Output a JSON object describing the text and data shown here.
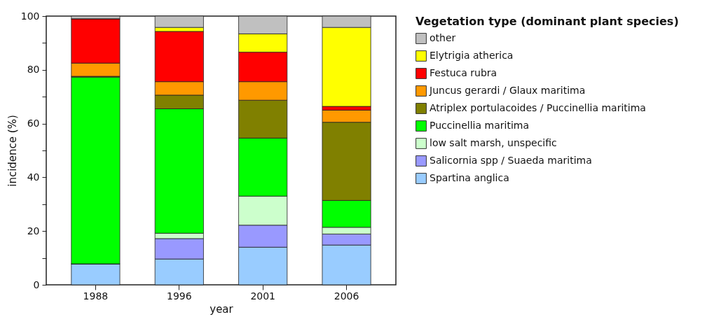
{
  "chart_data": {
    "type": "bar",
    "stacked": true,
    "xlabel": "year",
    "ylabel": "incidence (%)",
    "legend_title": "Vegetation type (dominant plant species)",
    "legend": "right",
    "grid": false,
    "categories": [
      "1988",
      "1996",
      "2001",
      "2006"
    ],
    "ylim": [
      0,
      100
    ],
    "yticks": [
      0,
      {
        "value": 10,
        "label": null
      },
      20,
      {
        "value": 30,
        "label": null
      },
      40,
      {
        "value": 50,
        "label": null
      },
      60,
      {
        "value": 70,
        "label": null
      },
      80,
      {
        "value": 90,
        "label": null
      },
      100
    ],
    "series": [
      {
        "name": "Spartina anglica",
        "color": "#99ccff",
        "values": [
          7.8,
          9.6,
          14.0,
          14.8
        ]
      },
      {
        "name": "Salicornia   spp / Suaeda maritima",
        "color": "#9999ff",
        "values": [
          0,
          7.6,
          8.2,
          4.1
        ]
      },
      {
        "name": "low salt marsh, unspecific",
        "color": "#ccffcc",
        "values": [
          0,
          2.0,
          10.8,
          2.5
        ]
      },
      {
        "name": "Puccinellia maritima",
        "color": "#00ff00",
        "values": [
          69.5,
          46.3,
          21.6,
          10.0
        ]
      },
      {
        "name": "Atriplex portulacoides / Puccinellia maritima",
        "color": "#808000",
        "values": [
          0.3,
          5.1,
          14.1,
          29.1
        ]
      },
      {
        "name": "Juncus gerardi / Glaux maritima",
        "color": "#ff9900",
        "values": [
          4.9,
          5.0,
          6.9,
          4.5
        ]
      },
      {
        "name": "Festuca rubra",
        "color": "#ff0000",
        "values": [
          16.5,
          18.7,
          11.0,
          1.4
        ]
      },
      {
        "name": "Elytrigia atherica",
        "color": "#ffff00",
        "values": [
          0,
          1.5,
          6.8,
          29.4
        ]
      },
      {
        "name": "other",
        "color": "#c0c0c0",
        "values": [
          1.0,
          4.2,
          6.6,
          4.2
        ]
      }
    ]
  }
}
